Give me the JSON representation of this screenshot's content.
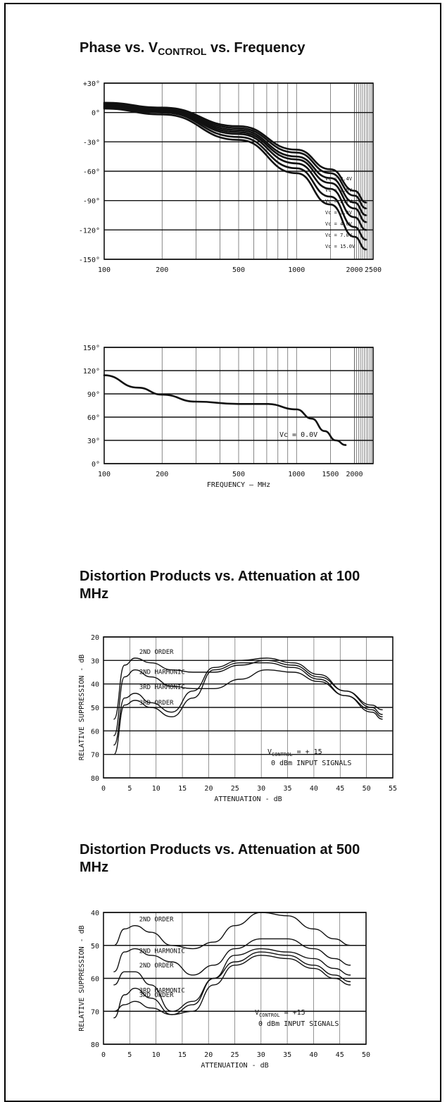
{
  "charts_text": {
    "title1_main": "Phase vs. V",
    "title1_sub": "CONTROL",
    "title1_tail": " vs. Frequency",
    "title3": "Distortion Products vs. Attenuation at 100 MHz",
    "title4": "Distortion Products vs. Attenuation at 500 MHz"
  },
  "chart_data": [
    {
      "type": "line",
      "title": "Phase vs. VCONTROL vs. Frequency",
      "xscale": "log",
      "xlim": [
        100,
        2500
      ],
      "ylim": [
        -150,
        30
      ],
      "x_tick_labels": [
        "100",
        "200",
        "500",
        "1000",
        "2000",
        "2500"
      ],
      "x_ticks": [
        100,
        200,
        500,
        1000,
        2000,
        2500
      ],
      "y_tick_labels": [
        "+30°",
        "0°",
        "-30°",
        "-60°",
        "-90°",
        "-120°",
        "-150°"
      ],
      "y_ticks": [
        30,
        0,
        -30,
        -60,
        -90,
        -120,
        -150
      ],
      "grid": true,
      "series": [
        {
          "name": "Vc = 2.4V",
          "x": [
            100,
            200,
            500,
            1000,
            1500,
            2000,
            2300
          ],
          "y": [
            10,
            5,
            -14,
            -38,
            -58,
            -80,
            -92
          ]
        },
        {
          "name": "Vc = 2.5V",
          "x": [
            100,
            200,
            500,
            1000,
            1500,
            2000,
            2300
          ],
          "y": [
            9,
            4,
            -16,
            -41,
            -62,
            -85,
            -98
          ]
        },
        {
          "name": "Vc = 2.7V",
          "x": [
            100,
            200,
            500,
            1000,
            1500,
            2000,
            2300
          ],
          "y": [
            8,
            3,
            -18,
            -45,
            -67,
            -92,
            -105
          ]
        },
        {
          "name": "Vc = 3.0V",
          "x": [
            100,
            200,
            500,
            1000,
            1500,
            2000,
            2300
          ],
          "y": [
            7,
            2,
            -20,
            -48,
            -72,
            -98,
            -112
          ]
        },
        {
          "name": "Vc = 4.0V",
          "x": [
            100,
            200,
            500,
            1000,
            1500,
            2000,
            2300
          ],
          "y": [
            6,
            1,
            -22,
            -52,
            -78,
            -107,
            -120
          ]
        },
        {
          "name": "Vc = 7.0V",
          "x": [
            100,
            200,
            500,
            1000,
            1500,
            2000,
            2300
          ],
          "y": [
            5,
            0,
            -25,
            -57,
            -86,
            -117,
            -130
          ]
        },
        {
          "name": "Vc = 15.0V",
          "x": [
            100,
            200,
            500,
            1000,
            1500,
            2000,
            2300
          ],
          "y": [
            4,
            -2,
            -28,
            -62,
            -94,
            -127,
            -140
          ]
        }
      ]
    },
    {
      "type": "line",
      "xscale": "log",
      "xlim": [
        100,
        2500
      ],
      "ylim": [
        0,
        150
      ],
      "xlabel": "FREQUENCY – MHz",
      "x_tick_labels": [
        "100",
        "200",
        "500",
        "1000",
        "1500",
        "2000"
      ],
      "x_ticks": [
        100,
        200,
        500,
        1000,
        1500,
        2000
      ],
      "y_tick_labels": [
        "150°",
        "120°",
        "90°",
        "60°",
        "30°",
        "0°"
      ],
      "y_ticks": [
        150,
        120,
        90,
        60,
        30,
        0
      ],
      "grid": true,
      "series": [
        {
          "name": "Vc = 0.0V",
          "x": [
            100,
            150,
            200,
            300,
            500,
            700,
            1000,
            1200,
            1400,
            1600,
            1800
          ],
          "y": [
            114,
            98,
            89,
            80,
            77,
            77,
            70,
            58,
            42,
            30,
            24
          ]
        }
      ]
    },
    {
      "type": "line",
      "title": "Distortion Products vs. Attenuation at 100 MHz",
      "xlabel": "ATTENUATION - dB",
      "ylabel": "RELATIVE SUPPRESSION - dB",
      "xlim": [
        0,
        55
      ],
      "ylim": [
        20,
        80
      ],
      "y_inverted": true,
      "x_tick_labels": [
        "0",
        "5",
        "10",
        "15",
        "20",
        "25",
        "30",
        "35",
        "40",
        "45",
        "50",
        "55"
      ],
      "x_ticks": [
        0,
        5,
        10,
        15,
        20,
        25,
        30,
        35,
        40,
        45,
        50,
        55
      ],
      "y_tick_labels": [
        "20",
        "30",
        "40",
        "50",
        "60",
        "70",
        "80"
      ],
      "y_ticks": [
        20,
        30,
        40,
        50,
        60,
        70,
        80
      ],
      "grid": true,
      "annotations": [
        "V",
        "CONTROL",
        " = + 15",
        "0 dBm INPUT SIGNALS"
      ],
      "series": [
        {
          "name": "2ND ORDER",
          "x": [
            2,
            4,
            6,
            9,
            13,
            17,
            21,
            26,
            31,
            36,
            41,
            46,
            51,
            53
          ],
          "y": [
            55,
            32,
            29,
            31,
            34,
            35,
            35,
            32,
            30,
            32,
            37,
            43,
            49,
            51
          ]
        },
        {
          "name": "2ND HARMONIC",
          "x": [
            2,
            4,
            6,
            9,
            13,
            17,
            21,
            26,
            31,
            36,
            41,
            46,
            51,
            53
          ],
          "y": [
            62,
            37,
            34,
            37,
            41,
            42,
            42,
            38,
            34,
            35,
            39,
            45,
            51,
            54
          ]
        },
        {
          "name": "3RD HARMONIC",
          "x": [
            2,
            4,
            6,
            9,
            13,
            17,
            21,
            26,
            31,
            36,
            41,
            46,
            51,
            53
          ],
          "y": [
            66,
            46,
            44,
            48,
            52,
            43,
            33,
            30,
            29,
            31,
            36,
            43,
            50,
            53
          ]
        },
        {
          "name": "3RD ORDER",
          "x": [
            2,
            4,
            6,
            9,
            13,
            17,
            21,
            26,
            31,
            36,
            41,
            46,
            51,
            53
          ],
          "y": [
            70,
            49,
            47,
            50,
            54,
            46,
            34,
            31,
            31,
            33,
            38,
            45,
            52,
            55
          ]
        }
      ]
    },
    {
      "type": "line",
      "title": "Distortion Products vs. Attenuation at 500 MHz",
      "xlabel": "ATTENUATION - dB",
      "ylabel": "RELATIVE SUPPRESSION - dB",
      "xlim": [
        0,
        50
      ],
      "ylim": [
        40,
        80
      ],
      "y_inverted": true,
      "x_tick_labels": [
        "0",
        "5",
        "10",
        "15",
        "20",
        "25",
        "30",
        "35",
        "40",
        "45",
        "50"
      ],
      "x_ticks": [
        0,
        5,
        10,
        15,
        20,
        25,
        30,
        35,
        40,
        45,
        50
      ],
      "y_tick_labels": [
        "40",
        "50",
        "60",
        "70",
        "80"
      ],
      "y_ticks": [
        40,
        50,
        60,
        70,
        80
      ],
      "grid": true,
      "annotations": [
        "V",
        "CONTROL",
        " = +15",
        "0 dBm INPUT SIGNALS"
      ],
      "series": [
        {
          "name": "2ND ORDER",
          "x": [
            2,
            4,
            6,
            9,
            13,
            17,
            21,
            25,
            30,
            35,
            40,
            44,
            47
          ],
          "y": [
            50,
            45,
            44,
            46,
            50,
            51,
            49,
            44,
            40,
            41,
            45,
            48,
            50
          ]
        },
        {
          "name": "2ND HARMONIC",
          "x": [
            2,
            4,
            6,
            9,
            13,
            17,
            21,
            25,
            30,
            35,
            40,
            44,
            47
          ],
          "y": [
            58,
            52,
            51,
            53,
            55,
            59,
            56,
            51,
            48,
            48,
            51,
            54,
            56
          ]
        },
        {
          "name": "2ND ORDER",
          "x": [
            2,
            4,
            6,
            9,
            13,
            17,
            21,
            25,
            30,
            35,
            40,
            44,
            47
          ],
          "y": [
            62,
            58,
            58,
            62,
            70,
            67,
            60,
            53,
            51,
            52,
            54,
            57,
            59
          ]
        },
        {
          "name": "3RD HARMONIC",
          "x": [
            2,
            4,
            6,
            9,
            13,
            17,
            21,
            25,
            30,
            35,
            40,
            44,
            47
          ],
          "y": [
            72,
            65,
            63,
            66,
            71,
            68,
            60,
            55,
            52,
            53,
            56,
            59,
            61
          ]
        },
        {
          "name": "3RD ORDER",
          "x": [
            2,
            4,
            6,
            9,
            13,
            17,
            21,
            25,
            30,
            35,
            40,
            44,
            47
          ],
          "y": [
            70,
            68,
            67,
            69,
            71,
            70,
            62,
            56,
            53,
            54,
            57,
            60,
            62
          ]
        }
      ]
    }
  ]
}
